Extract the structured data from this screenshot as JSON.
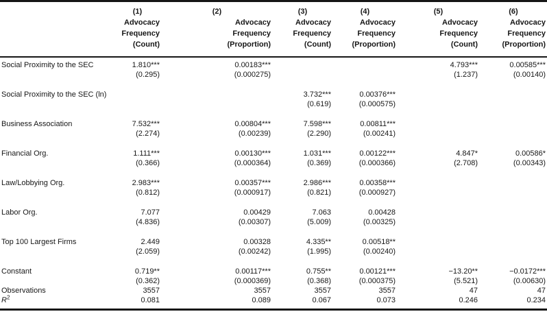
{
  "meta": {
    "background": "#ffffff",
    "text_color": "#161616",
    "rule_color": "#161616"
  },
  "table": {
    "header": {
      "label_column": "",
      "columns": [
        {
          "id": "(1)",
          "lines": [
            "Advocacy",
            "Frequency",
            "(Count)"
          ]
        },
        {
          "id": "(2)",
          "lines": [
            "Advocacy",
            "Frequency",
            "(Proportion)"
          ]
        },
        {
          "id": "(3)",
          "lines": [
            "Advocacy",
            "Frequency",
            "(Count)"
          ]
        },
        {
          "id": "(4)",
          "lines": [
            "Advocacy",
            "Frequency",
            "(Proportion)"
          ]
        },
        {
          "id": "(5)",
          "lines": [
            "Advocacy",
            "Frequency",
            "(Count)"
          ]
        },
        {
          "id": "(6)",
          "lines": [
            "Advocacy",
            "Frequency",
            "(Proportion)"
          ]
        }
      ]
    },
    "rows": [
      {
        "label": "Social Proximity to the SEC",
        "gap_after": true,
        "cells": [
          {
            "coef": "1.810***",
            "se": "(0.295)"
          },
          {
            "coef": "0.00183***",
            "se": "(0.000275)"
          },
          null,
          null,
          {
            "coef": "4.793***",
            "se": "(1.237)"
          },
          {
            "coef": "0.00585***",
            "se": "(0.00140)"
          }
        ]
      },
      {
        "label": "Social Proximity to the SEC (ln)",
        "gap_after": true,
        "cells": [
          null,
          null,
          {
            "coef": "3.732***",
            "se": "(0.619)"
          },
          {
            "coef": "0.00376***",
            "se": "(0.000575)"
          },
          null,
          null
        ]
      },
      {
        "label": "Business Association",
        "gap_after": true,
        "cells": [
          {
            "coef": "7.532***",
            "se": "(2.274)"
          },
          {
            "coef": "0.00804***",
            "se": "(0.00239)"
          },
          {
            "coef": "7.598***",
            "se": "(2.290)"
          },
          {
            "coef": "0.00811***",
            "se": "(0.00241)"
          },
          null,
          null
        ]
      },
      {
        "label": "Financial Org.",
        "gap_after": true,
        "cells": [
          {
            "coef": "1.111***",
            "se": "(0.366)"
          },
          {
            "coef": "0.00130***",
            "se": "(0.000364)"
          },
          {
            "coef": "1.031***",
            "se": "(0.369)"
          },
          {
            "coef": "0.00122***",
            "se": "(0.000366)"
          },
          {
            "coef": "4.847*",
            "se": "(2.708)"
          },
          {
            "coef": "0.00586*",
            "se": "(0.00343)"
          }
        ]
      },
      {
        "label": "Law/Lobbying Org.",
        "gap_after": true,
        "cells": [
          {
            "coef": "2.983***",
            "se": "(0.812)"
          },
          {
            "coef": "0.00357***",
            "se": "(0.000917)"
          },
          {
            "coef": "2.986***",
            "se": "(0.821)"
          },
          {
            "coef": "0.00358***",
            "se": "(0.000927)"
          },
          null,
          null
        ]
      },
      {
        "label": "Labor Org.",
        "gap_after": true,
        "cells": [
          {
            "coef": "7.077",
            "se": "(4.836)"
          },
          {
            "coef": "0.00429",
            "se": "(0.00307)"
          },
          {
            "coef": "7.063",
            "se": "(5.009)"
          },
          {
            "coef": "0.00428",
            "se": "(0.00325)"
          },
          null,
          null
        ]
      },
      {
        "label": "Top 100 Largest Firms",
        "gap_after": true,
        "cells": [
          {
            "coef": "2.449",
            "se": "(2.059)"
          },
          {
            "coef": "0.00328",
            "se": "(0.00242)"
          },
          {
            "coef": "4.335**",
            "se": "(1.995)"
          },
          {
            "coef": "0.00518**",
            "se": "(0.00240)"
          },
          null,
          null
        ]
      },
      {
        "label": "Constant",
        "gap_after": false,
        "cells": [
          {
            "coef": "0.719**",
            "se": "(0.362)"
          },
          {
            "coef": "0.00117***",
            "se": "(0.000369)"
          },
          {
            "coef": "0.755**",
            "se": "(0.368)"
          },
          {
            "coef": "0.00121***",
            "se": "(0.000375)"
          },
          {
            "coef": "−13.20**",
            "se": "(5.521)"
          },
          {
            "coef": "−0.0172***",
            "se": "(0.00630)"
          }
        ]
      }
    ],
    "stats": [
      {
        "label": "Observations",
        "values": [
          "3557",
          "3557",
          "3557",
          "3557",
          "47",
          "47"
        ]
      },
      {
        "label_base": "R",
        "label_sup": "2",
        "values": [
          "0.081",
          "0.089",
          "0.067",
          "0.073",
          "0.246",
          "0.234"
        ]
      }
    ]
  }
}
